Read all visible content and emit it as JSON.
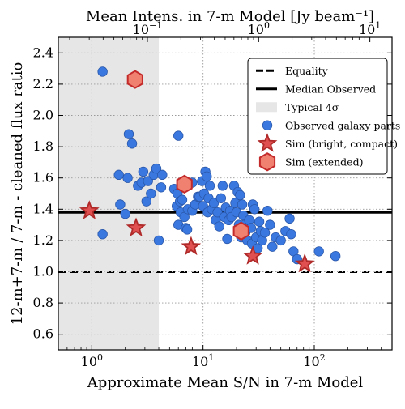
{
  "chart_data": {
    "type": "scatter",
    "title": "",
    "xlabel": "Approximate Mean S/N in 7-m Model",
    "ylabel": "12-m+7-m / 7-m - cleaned flux ratio",
    "top_xlabel": "Mean Intens. in 7-m Model [Jy beam⁻¹]",
    "x_scale": "log",
    "xlim": [
      0.5,
      500
    ],
    "ylim": [
      0.5,
      2.5
    ],
    "grid": true,
    "legend_position": "upper-right",
    "x_ticks": [
      {
        "value": 1,
        "base": "10",
        "exp": "0"
      },
      {
        "value": 10,
        "base": "10",
        "exp": "1"
      },
      {
        "value": 100,
        "base": "10",
        "exp": "2"
      }
    ],
    "top_x_ticks": [
      {
        "value": 3.16,
        "base": "10",
        "exp": "−1"
      },
      {
        "value": 31.6,
        "base": "10",
        "exp": "0"
      },
      {
        "value": 316,
        "base": "10",
        "exp": "1"
      }
    ],
    "y_ticks": [
      "0.6",
      "0.8",
      "1.0",
      "1.2",
      "1.4",
      "1.6",
      "1.8",
      "2.0",
      "2.2",
      "2.4"
    ],
    "shaded_region": {
      "label": "Typical 4σ",
      "x_min": 0.5,
      "x_max": 4.0,
      "color": "#e6e6e6"
    },
    "equality": {
      "label": "Equality",
      "y": 1.0
    },
    "median_observed": {
      "label": "Median Observed",
      "y": 1.38
    },
    "series": [
      {
        "name": "Observed galaxy parts",
        "marker": "circle",
        "color": "#3a78e0",
        "edge": "#2a57a8",
        "points": [
          [
            1.25,
            2.28
          ],
          [
            1.25,
            1.24
          ],
          [
            1.75,
            1.62
          ],
          [
            1.8,
            1.43
          ],
          [
            2.0,
            1.37
          ],
          [
            2.1,
            1.6
          ],
          [
            2.15,
            1.88
          ],
          [
            2.3,
            1.82
          ],
          [
            2.6,
            1.55
          ],
          [
            2.8,
            1.57
          ],
          [
            2.9,
            1.64
          ],
          [
            3.1,
            1.45
          ],
          [
            3.2,
            1.58
          ],
          [
            3.4,
            1.5
          ],
          [
            3.6,
            1.62
          ],
          [
            3.8,
            1.66
          ],
          [
            4.0,
            1.2
          ],
          [
            4.2,
            1.54
          ],
          [
            4.3,
            1.62
          ],
          [
            5.5,
            1.53
          ],
          [
            5.8,
            1.42
          ],
          [
            5.9,
            1.5
          ],
          [
            6.0,
            1.87
          ],
          [
            6.0,
            1.3
          ],
          [
            6.2,
            1.45
          ],
          [
            6.3,
            1.38
          ],
          [
            6.5,
            1.46
          ],
          [
            6.8,
            1.35
          ],
          [
            7.0,
            1.28
          ],
          [
            7.2,
            1.27
          ],
          [
            7.3,
            1.4
          ],
          [
            8.0,
            1.57
          ],
          [
            8.0,
            1.39
          ],
          [
            8.5,
            1.43
          ],
          [
            9.0,
            1.48
          ],
          [
            9.3,
            1.48
          ],
          [
            9.8,
            1.58
          ],
          [
            10.0,
            1.42
          ],
          [
            10.2,
            1.5
          ],
          [
            10.5,
            1.64
          ],
          [
            10.8,
            1.61
          ],
          [
            11.0,
            1.38
          ],
          [
            11.2,
            1.47
          ],
          [
            11.5,
            1.55
          ],
          [
            12.0,
            1.4
          ],
          [
            12.5,
            1.44
          ],
          [
            13.0,
            1.33
          ],
          [
            13.5,
            1.38
          ],
          [
            14.0,
            1.29
          ],
          [
            14.5,
            1.47
          ],
          [
            15.0,
            1.55
          ],
          [
            15.5,
            1.35
          ],
          [
            16.0,
            1.41
          ],
          [
            16.5,
            1.21
          ],
          [
            17.0,
            1.33
          ],
          [
            17.5,
            1.39
          ],
          [
            18.0,
            1.35
          ],
          [
            19.0,
            1.55
          ],
          [
            19.5,
            1.44
          ],
          [
            20.0,
            1.38
          ],
          [
            20.5,
            1.51
          ],
          [
            21.0,
            1.3
          ],
          [
            21.5,
            1.49
          ],
          [
            22.0,
            1.22
          ],
          [
            22.5,
            1.43
          ],
          [
            23.0,
            1.36
          ],
          [
            23.5,
            1.3
          ],
          [
            24.0,
            1.25
          ],
          [
            25.0,
            1.2
          ],
          [
            26.0,
            1.33
          ],
          [
            27.0,
            1.28
          ],
          [
            27.5,
            1.18
          ],
          [
            28.0,
            1.43
          ],
          [
            29.0,
            1.4
          ],
          [
            30.0,
            1.22
          ],
          [
            31.0,
            1.15
          ],
          [
            32.0,
            1.32
          ],
          [
            33.0,
            1.26
          ],
          [
            34.0,
            1.2
          ],
          [
            36.0,
            1.25
          ],
          [
            38.0,
            1.39
          ],
          [
            40.0,
            1.3
          ],
          [
            42.0,
            1.16
          ],
          [
            45.0,
            1.22
          ],
          [
            50.0,
            1.2
          ],
          [
            55.0,
            1.26
          ],
          [
            60.0,
            1.34
          ],
          [
            62.0,
            1.24
          ],
          [
            65.0,
            1.13
          ],
          [
            70.0,
            1.08
          ],
          [
            110.0,
            1.13
          ],
          [
            155.0,
            1.1
          ]
        ]
      },
      {
        "name": "Sim (bright, compact)",
        "marker": "star",
        "color": "#e05050",
        "edge": "#b02a2a",
        "points": [
          [
            0.95,
            1.39
          ],
          [
            2.5,
            1.28
          ],
          [
            7.8,
            1.16
          ],
          [
            28.0,
            1.1
          ],
          [
            82.0,
            1.05
          ]
        ]
      },
      {
        "name": "Sim (extended)",
        "marker": "hexagon",
        "color": "#f08070",
        "edge": "#c42a2a",
        "points": [
          [
            2.45,
            2.23
          ],
          [
            6.8,
            1.56
          ],
          [
            22.0,
            1.26
          ]
        ]
      }
    ]
  }
}
